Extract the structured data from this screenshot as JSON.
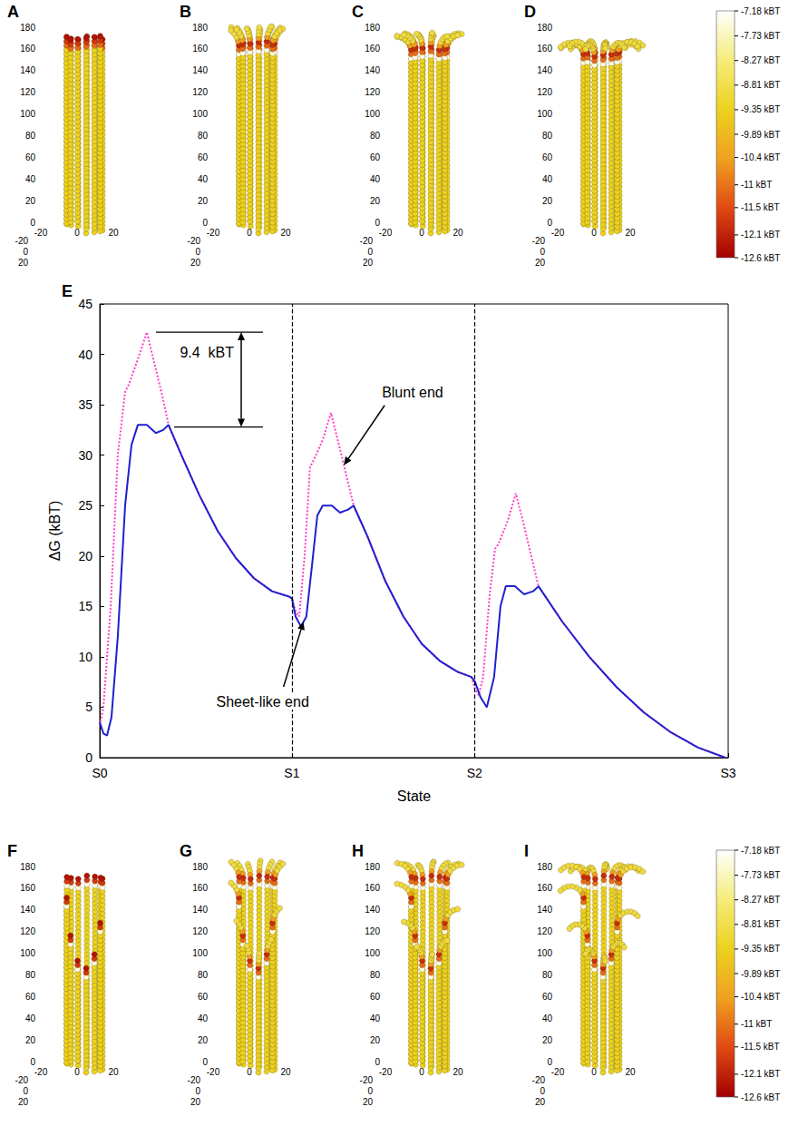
{
  "chart_data": {
    "type": "line",
    "panel": "E",
    "x_label": "State",
    "y_label": "ΔG (kBT)",
    "xlim": [
      0,
      3.27
    ],
    "xticks": [
      {
        "value": 0,
        "label": "S0"
      },
      {
        "value": 1,
        "label": "S1"
      },
      {
        "value": 1.95,
        "label": "S2"
      },
      {
        "value": 3.27,
        "label": "S3"
      }
    ],
    "ylim": [
      0,
      45
    ],
    "yticks": [
      0,
      5,
      10,
      15,
      20,
      25,
      30,
      35,
      40,
      45
    ],
    "grid": false,
    "vlines": [
      1,
      1.95
    ],
    "series": [
      {
        "name": "Sheet-like end",
        "color": "#2020d0",
        "line_style": "solid",
        "x": [
          0,
          0.019,
          0.038,
          0.061,
          0.094,
          0.132,
          0.165,
          0.198,
          0.245,
          0.292,
          0.33,
          0.358,
          0.425,
          0.519,
          0.613,
          0.708,
          0.802,
          0.896,
          0.981,
          1.0,
          1.019,
          1.047,
          1.075,
          1.104,
          1.132,
          1.16,
          1.208,
          1.25,
          1.292,
          1.321,
          1.392,
          1.486,
          1.58,
          1.675,
          1.769,
          1.863,
          1.934,
          1.953,
          1.981,
          2.014,
          2.052,
          2.085,
          2.113,
          2.16,
          2.208,
          2.255,
          2.283,
          2.406,
          2.547,
          2.689,
          2.83,
          2.972,
          3.113,
          3.255
        ],
        "values": [
          3.5,
          2.4,
          2.2,
          4,
          12,
          25,
          31,
          33,
          33,
          32.2,
          32.5,
          33,
          30,
          26,
          22.5,
          19.8,
          17.8,
          16.5,
          16,
          15.8,
          14,
          13,
          14,
          19,
          24,
          25,
          25,
          24.3,
          24.6,
          25,
          22,
          17.5,
          14,
          11.3,
          9.6,
          8.5,
          8,
          7.5,
          6,
          5,
          8,
          15,
          17,
          17,
          16.2,
          16.5,
          17,
          13.5,
          10,
          7,
          4.5,
          2.5,
          1,
          0
        ]
      },
      {
        "name": "Blunt end",
        "color": "#ff3fc8",
        "line_style": "dotted",
        "x": [
          0,
          0.019,
          0.057,
          0.094,
          0.132,
          0.151,
          0.198,
          0.245,
          0.292,
          0.33,
          0.358,
          0.425,
          0.519,
          0.613,
          0.708,
          0.802,
          0.896,
          0.981,
          1.0,
          1.019,
          1.038,
          1.066,
          1.094,
          1.113,
          1.16,
          1.203,
          1.245,
          1.283,
          1.321,
          1.392,
          1.486,
          1.58,
          1.675,
          1.769,
          1.863,
          1.934,
          1.953,
          1.972,
          1.995,
          2.028,
          2.057,
          2.075,
          2.123,
          2.165,
          2.208,
          2.245,
          2.283,
          2.406,
          2.547,
          2.689,
          2.83,
          2.972,
          3.113,
          3.255
        ],
        "values": [
          3.2,
          5,
          15,
          30,
          36.3,
          37,
          39.5,
          42.2,
          38.5,
          35.5,
          33,
          30,
          26,
          22.5,
          19.8,
          17.8,
          16.5,
          16,
          15.8,
          14.5,
          14,
          20,
          28.8,
          29.5,
          31.5,
          34.2,
          31,
          28,
          25,
          22,
          17.5,
          14,
          11.3,
          9.6,
          8.5,
          8,
          6.8,
          6.2,
          8,
          16,
          20.7,
          21.2,
          23.5,
          26.2,
          23,
          20,
          17,
          13.5,
          10,
          7,
          4.5,
          2.5,
          1,
          0
        ]
      }
    ],
    "annotations": [
      {
        "series": "Blunt end",
        "x": 1.27,
        "y": 29
      },
      {
        "series": "Sheet-like end",
        "x": 1.06,
        "y": 13.5
      }
    ],
    "bracket": {
      "text": "9.4  kBT",
      "y": [
        32.8,
        42.2
      ]
    }
  },
  "panels": {
    "top": {
      "end": "blunt",
      "labels": [
        "A",
        "B",
        "C",
        "D"
      ]
    },
    "bottom": {
      "end": "sheet",
      "labels": [
        "F",
        "G",
        "H",
        "I"
      ]
    }
  },
  "panel_axes": {
    "ylim": [
      0,
      180
    ],
    "yticks": [
      0,
      20,
      40,
      60,
      80,
      100,
      120,
      140,
      160,
      180
    ],
    "xlim": [
      -20,
      20
    ],
    "xticks": [
      -20,
      0,
      20
    ],
    "zticks": [
      -20,
      0,
      20
    ]
  },
  "colorbar": {
    "clim": [
      -12.6,
      -7.18
    ],
    "colors": [
      "#ffffff",
      "#f5ec7a",
      "#ecd21e",
      "#f0a020",
      "#e04a12",
      "#a30000"
    ],
    "ticks": [
      {
        "value": -7.18,
        "label": "-7.18 kBT"
      },
      {
        "value": -7.73,
        "label": "-7.73 kBT"
      },
      {
        "value": -8.27,
        "label": "-8.27 kBT"
      },
      {
        "value": -8.81,
        "label": "-8.81 kBT"
      },
      {
        "value": -9.35,
        "label": "-9.35 kBT"
      },
      {
        "value": -9.89,
        "label": "-9.89 kBT"
      },
      {
        "value": -10.4,
        "label": "-10.4 kBT"
      },
      {
        "value": -11,
        "label": "-11 kBT"
      },
      {
        "value": -11.5,
        "label": "-11.5 kBT"
      },
      {
        "value": -12.1,
        "label": "-12.1 kBT"
      },
      {
        "value": -12.6,
        "label": "-12.6 kBT"
      }
    ]
  }
}
